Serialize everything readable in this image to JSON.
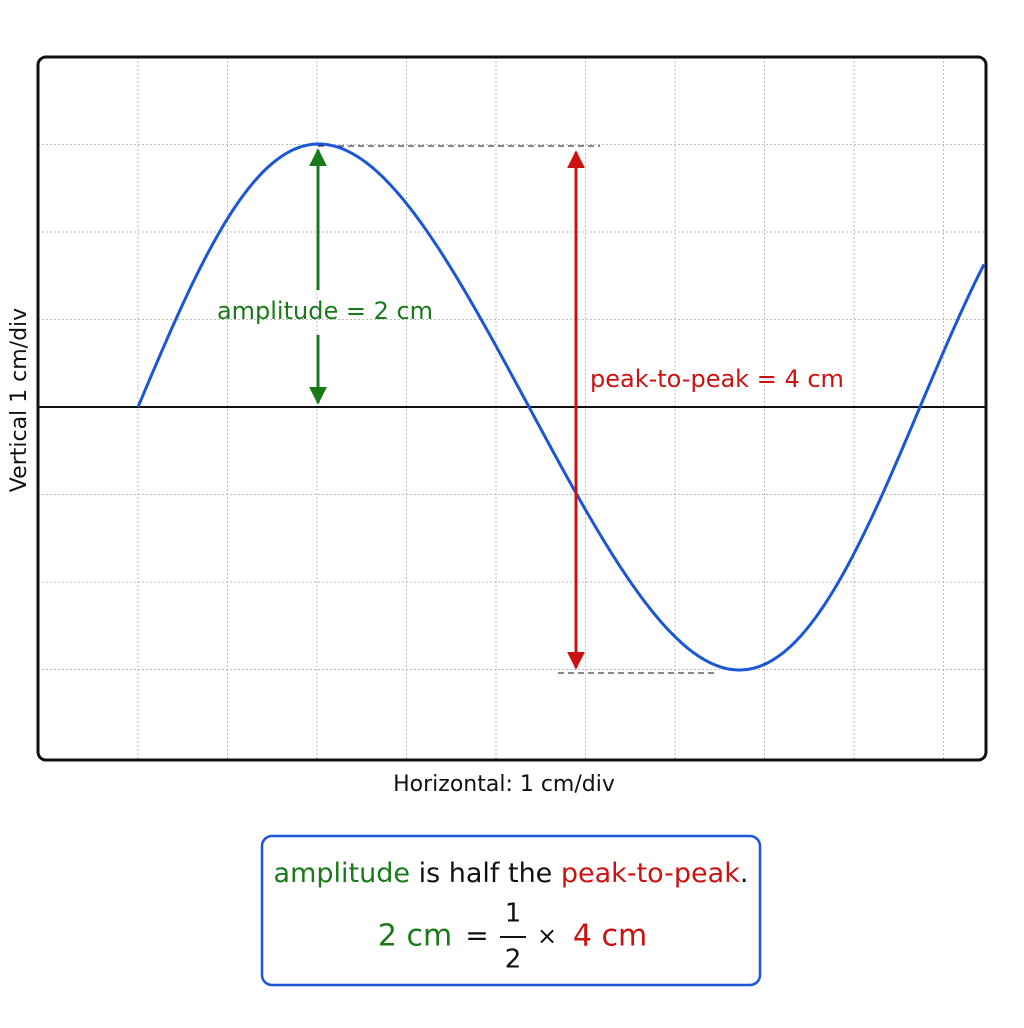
{
  "screen": {
    "y_label": "Vertical 1 cm/div",
    "x_label": "Horizontal: 1 cm/div",
    "amplitude_label": "amplitude = 2 cm",
    "peak_to_peak_label": "peak-to-peak = 4 cm"
  },
  "note": {
    "line1": {
      "term1": "amplitude",
      "middle": "is half the",
      "term2": "peak-to-peak",
      "end": "."
    },
    "equation": {
      "left": "2 cm",
      "equals": "=",
      "numerator": "1",
      "denominator": "2",
      "times": "×",
      "right": "4 cm"
    }
  }
}
